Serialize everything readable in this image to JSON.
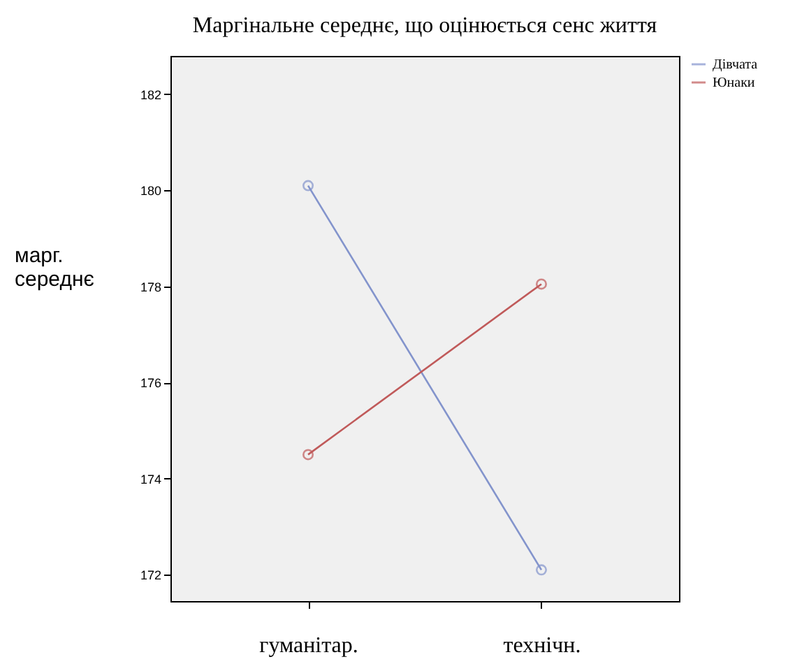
{
  "chart_data": {
    "type": "line",
    "title": "Маргінальне середнє, що оцінюється сенс життя",
    "ylabel": "марг. середнє",
    "categories": [
      "гуманітар.",
      "технічн."
    ],
    "series": [
      {
        "name": "Дівчата",
        "color": "#8394cc",
        "values": [
          180.1,
          172.1
        ]
      },
      {
        "name": "Юнаки",
        "color": "#c05a5a",
        "values": [
          174.5,
          178.05
        ]
      }
    ],
    "ylim": [
      171.45,
      182.8
    ],
    "yticks": [
      172,
      174,
      176,
      178,
      180,
      182
    ],
    "grid": false,
    "legend": "top right",
    "marker": "circle",
    "line_style": "solid"
  }
}
